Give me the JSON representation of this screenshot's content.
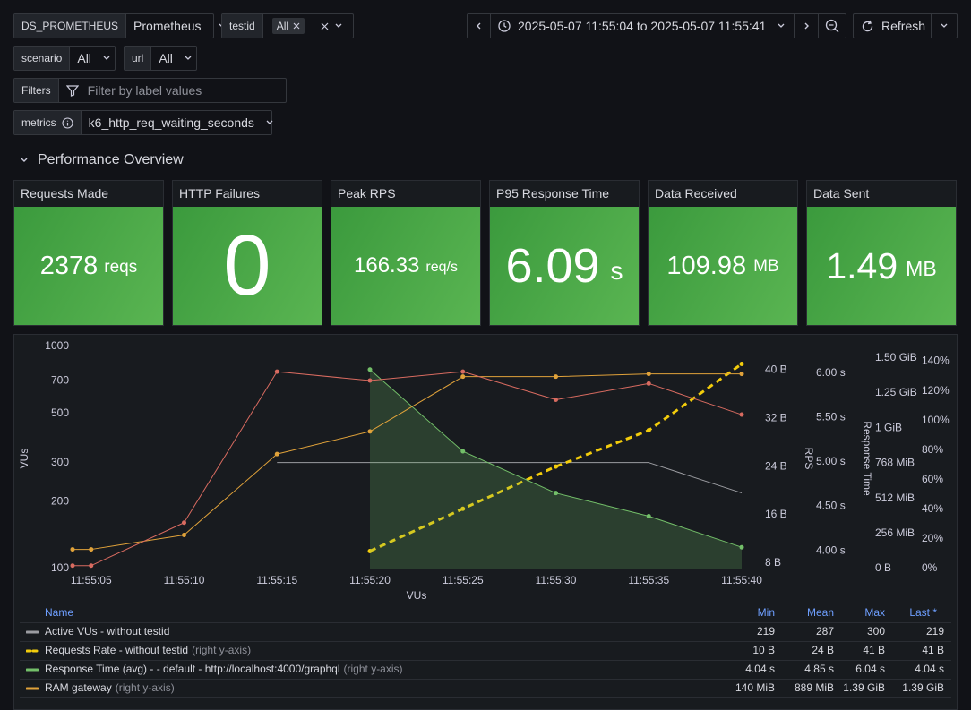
{
  "variables": [
    {
      "label": "DS_PROMETHEUS",
      "value": "Prometheus"
    },
    {
      "label": "testid",
      "value": "All"
    },
    {
      "label": "scenario",
      "value": "All"
    },
    {
      "label": "url",
      "value": "All"
    },
    {
      "label": "Filters",
      "placeholder": "Filter by label values"
    },
    {
      "label": "metrics",
      "value": "k6_http_req_waiting_seconds"
    }
  ],
  "time_range": "2025-05-07 11:55:04 to 2025-05-07 11:55:41",
  "refresh": "Refresh",
  "row_title": "Performance Overview",
  "stats": [
    {
      "title": "Requests Made",
      "value": "2378",
      "unit": "reqs"
    },
    {
      "title": "HTTP Failures",
      "value": "0"
    },
    {
      "title": "Peak RPS",
      "value": "166.33",
      "unit": "req/s"
    },
    {
      "title": "P95 Response Time",
      "value": "6.09",
      "unit": "s"
    },
    {
      "title": "Data Received",
      "value": "109.98",
      "unit": "MB"
    },
    {
      "title": "Data Sent",
      "value": "1.49",
      "unit": "MB"
    }
  ],
  "chart": {
    "type": "line",
    "xlabel": "VUs",
    "x": [
      "11:55:04",
      "11:55:05",
      "11:55:10",
      "11:55:15",
      "11:55:20",
      "11:55:25",
      "11:55:30",
      "11:55:35",
      "11:55:40"
    ],
    "xlim": [
      "11:55:04",
      "11:55:40"
    ],
    "xticks": [
      "11:55:05",
      "11:55:10",
      "11:55:15",
      "11:55:20",
      "11:55:25",
      "11:55:30",
      "11:55:35",
      "11:55:40"
    ],
    "axes": [
      {
        "label": "VUs",
        "log": true,
        "lim": [
          100,
          1000
        ],
        "ticks": [
          100,
          200,
          300,
          500,
          700,
          1000
        ]
      },
      {
        "label": "RPS",
        "lim": [
          7.1,
          43.9
        ],
        "ticks": [
          {
            "value": 8,
            "label": "8 B"
          },
          {
            "value": 16,
            "label": "16 B"
          },
          {
            "value": 24,
            "label": "24 B"
          },
          {
            "value": 32,
            "label": "32 B"
          },
          {
            "value": 40,
            "label": "40 B"
          }
        ]
      },
      {
        "label": "Response Time",
        "lim": [
          3.8,
          6.3
        ],
        "ticks": [
          {
            "value": 4,
            "label": "4.00 s"
          },
          {
            "value": 4.5,
            "label": "4.50 s"
          },
          {
            "value": 5,
            "label": "5.00 s"
          },
          {
            "value": 5.5,
            "label": "5.50 s"
          },
          {
            "value": 6,
            "label": "6.00 s"
          }
        ]
      },
      {
        "lim": [
          0,
          1620
        ],
        "ticks": [
          {
            "value": 0,
            "label": "0 B"
          },
          {
            "value": 256,
            "label": "256 MiB"
          },
          {
            "value": 512,
            "label": "512 MiB"
          },
          {
            "value": 768,
            "label": "768 MiB"
          },
          {
            "value": 1024,
            "label": "1 GiB"
          },
          {
            "value": 1280,
            "label": "1.25 GiB"
          },
          {
            "value": 1536,
            "label": "1.50 GiB"
          }
        ]
      },
      {
        "lim": [
          0,
          150
        ],
        "ticks": [
          {
            "value": 0,
            "label": "0%"
          },
          {
            "value": 20,
            "label": "20%"
          },
          {
            "value": 40,
            "label": "40%"
          },
          {
            "value": 60,
            "label": "60%"
          },
          {
            "value": 80,
            "label": "80%"
          },
          {
            "value": 100,
            "label": "100%"
          },
          {
            "value": 120,
            "label": "120%"
          },
          {
            "value": 140,
            "label": "140%"
          }
        ]
      }
    ],
    "series": [
      {
        "name": "Active VUs - without testid",
        "color": "#9b9ca1",
        "axis": 0,
        "points": false,
        "values": [
          null,
          null,
          null,
          300,
          300,
          300,
          300,
          300,
          219
        ]
      },
      {
        "name": "Requests Rate - without testid",
        "color": "#f2cc0c",
        "axis": 1,
        "dashed": true,
        "points": true,
        "values": [
          null,
          null,
          null,
          null,
          10,
          17,
          24,
          30,
          41
        ]
      },
      {
        "name": "Response Time (avg) - - default - http://localhost:4000/graphql",
        "color": "#73bf69",
        "axis": 2,
        "fill": true,
        "points": true,
        "values": [
          null,
          null,
          null,
          null,
          6.04,
          5.12,
          4.65,
          4.39,
          4.04
        ]
      },
      {
        "name": "RAM gateway",
        "color": "#e0a23a",
        "axis": 3,
        "points": true,
        "values": [
          140,
          140,
          245,
          835,
          1000,
          1400,
          1400,
          1420,
          1420
        ]
      },
      {
        "color": "#d86b60",
        "axis": 4,
        "points": true,
        "values": [
          2,
          2,
          31,
          133,
          127,
          133,
          114,
          125,
          104
        ]
      }
    ]
  },
  "legend": {
    "columns": [
      "Name",
      "Min",
      "Mean",
      "Max",
      "Last *"
    ],
    "rows": [
      {
        "series": 0,
        "stats": [
          "219",
          "287",
          "300",
          "219"
        ]
      },
      {
        "series": 1,
        "suffix": "(right y-axis)",
        "stats": [
          "10 B",
          "24 B",
          "41 B",
          "41 B"
        ]
      },
      {
        "series": 2,
        "suffix": "(right y-axis)",
        "stats": [
          "4.04 s",
          "4.85 s",
          "6.04 s",
          "4.04 s"
        ]
      },
      {
        "series": 3,
        "suffix": "(right y-axis)",
        "stats": [
          "140 MiB",
          "889 MiB",
          "1.39 GiB",
          "1.39 GiB"
        ]
      }
    ]
  }
}
